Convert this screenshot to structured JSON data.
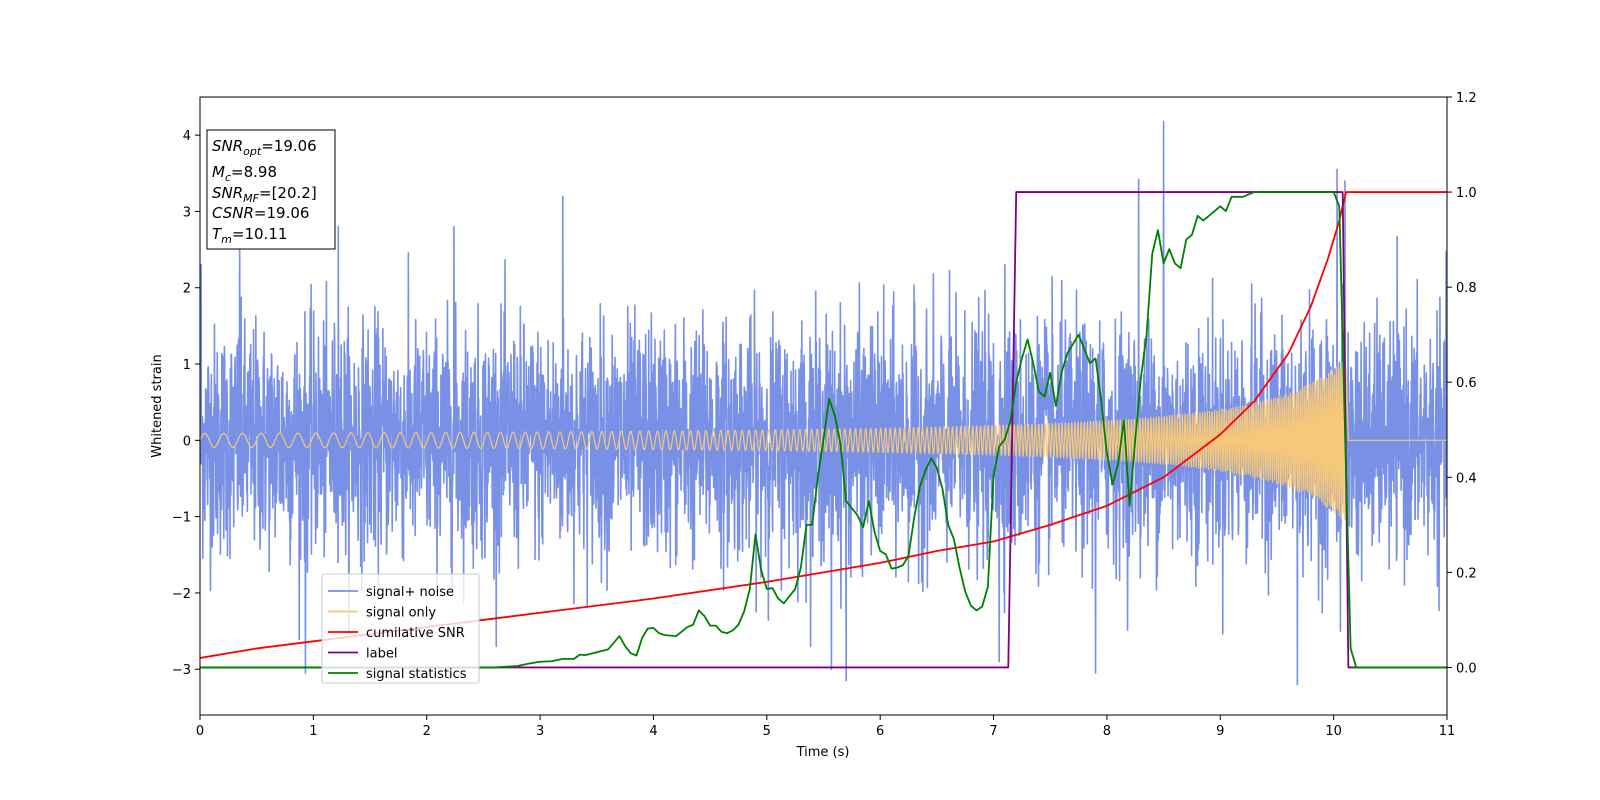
{
  "chart_data": {
    "type": "line",
    "xlabel": "Time (s)",
    "ylabel": "Whitened strain",
    "xlim": [
      0,
      11
    ],
    "ylim_left": [
      -3.6,
      4.5
    ],
    "ylim_right": [
      -0.1,
      1.2
    ],
    "x_ticks": [
      0,
      1,
      2,
      3,
      4,
      5,
      6,
      7,
      8,
      9,
      10,
      11
    ],
    "y_ticks_left": [
      -3,
      -2,
      -1,
      0,
      1,
      2,
      3,
      4
    ],
    "y_ticks_right": [
      0.0,
      0.2,
      0.4,
      0.6,
      0.8,
      1.0,
      1.2
    ],
    "y_tick_labels_left": [
      "−3",
      "−2",
      "−1",
      "0",
      "1",
      "2",
      "3",
      "4"
    ],
    "y_tick_labels_right": [
      "0.0",
      "0.2",
      "0.4",
      "0.6",
      "0.8",
      "1.0",
      "1.2"
    ],
    "legend_position": "bottom-left",
    "grid": false,
    "annotations": [
      {
        "var": "SNR",
        "sub": "opt",
        "value": "=19.06"
      },
      {
        "var": "M",
        "sub": "c",
        "value": "=8.98"
      },
      {
        "var": "SNR",
        "sub": "MF",
        "value": "=[20.2]"
      },
      {
        "var": "CSNR",
        "sub": "",
        "value": "=19.06"
      },
      {
        "var": "T",
        "sub": "m",
        "value": "=10.11"
      }
    ],
    "series": [
      {
        "name": "signal+ noise",
        "axis": "left",
        "color": "#7890e6",
        "kind": "noise",
        "params": {
          "noise_std": 0.75,
          "start": 0,
          "end": 11,
          "samples": 4400
        },
        "extremes": [
          [
            0.01,
            2.3
          ],
          [
            0.35,
            2.7
          ],
          [
            0.93,
            -3.05
          ],
          [
            1.22,
            2.8
          ],
          [
            2.24,
            2.8
          ],
          [
            3.2,
            3.2
          ],
          [
            5.57,
            -3.0
          ],
          [
            5.7,
            -3.15
          ],
          [
            7.1,
            2.3
          ],
          [
            7.05,
            -2.9
          ],
          [
            7.9,
            -3.05
          ],
          [
            8.28,
            3.42
          ],
          [
            8.5,
            4.18
          ],
          [
            9.68,
            -3.2
          ],
          [
            10.03,
            3.55
          ],
          [
            10.1,
            3.4
          ],
          [
            10.06,
            -2.5
          ]
        ]
      },
      {
        "name": "signal only",
        "axis": "left",
        "color": "#f5c87a",
        "kind": "chirp",
        "params": {
          "start": 0,
          "end": 10.11,
          "amp_start": 0.05,
          "amp_end": 1.1,
          "f_start": 6,
          "f_end": 60
        }
      },
      {
        "name": "cumilative SNR",
        "axis": "right",
        "color": "#ff0000",
        "x": [
          0,
          0.5,
          1,
          2,
          3,
          4,
          5,
          6,
          6.5,
          7,
          7.5,
          8,
          8.5,
          9,
          9.3,
          9.6,
          9.8,
          9.95,
          10.05,
          10.11,
          10.12,
          11
        ],
        "y": [
          0.02,
          0.04,
          0.055,
          0.085,
          0.115,
          0.145,
          0.18,
          0.22,
          0.245,
          0.265,
          0.3,
          0.34,
          0.4,
          0.49,
          0.56,
          0.66,
          0.76,
          0.86,
          0.94,
          1.0,
          1.0,
          1.0
        ]
      },
      {
        "name": "label",
        "axis": "right",
        "color": "#800080",
        "x": [
          0,
          7.13,
          7.2,
          10.08,
          10.13,
          11
        ],
        "y": [
          0,
          0,
          1,
          1,
          0,
          0
        ]
      },
      {
        "name": "signal statistics",
        "axis": "right",
        "color": "#008000",
        "x": [
          0,
          2.4,
          2.6,
          2.8,
          2.9,
          3.0,
          3.1,
          3.2,
          3.3,
          3.35,
          3.4,
          3.5,
          3.6,
          3.7,
          3.75,
          3.8,
          3.85,
          3.9,
          3.95,
          4.0,
          4.05,
          4.1,
          4.15,
          4.2,
          4.3,
          4.35,
          4.4,
          4.45,
          4.5,
          4.55,
          4.6,
          4.65,
          4.7,
          4.75,
          4.8,
          4.85,
          4.9,
          4.95,
          5.0,
          5.05,
          5.1,
          5.15,
          5.2,
          5.25,
          5.3,
          5.35,
          5.4,
          5.45,
          5.5,
          5.55,
          5.6,
          5.65,
          5.7,
          5.75,
          5.8,
          5.85,
          5.9,
          5.95,
          6.0,
          6.05,
          6.1,
          6.15,
          6.2,
          6.25,
          6.3,
          6.35,
          6.4,
          6.45,
          6.5,
          6.55,
          6.6,
          6.65,
          6.7,
          6.75,
          6.8,
          6.85,
          6.9,
          6.95,
          7.0,
          7.05,
          7.1,
          7.15,
          7.2,
          7.25,
          7.3,
          7.35,
          7.4,
          7.45,
          7.5,
          7.55,
          7.6,
          7.65,
          7.7,
          7.75,
          7.8,
          7.85,
          7.9,
          7.95,
          8.0,
          8.05,
          8.1,
          8.15,
          8.2,
          8.25,
          8.3,
          8.35,
          8.4,
          8.45,
          8.5,
          8.55,
          8.6,
          8.65,
          8.7,
          8.75,
          8.8,
          8.85,
          8.9,
          8.95,
          9.0,
          9.05,
          9.1,
          9.2,
          9.3,
          9.5,
          9.7,
          9.8,
          9.9,
          10.0,
          10.05,
          10.1,
          10.15,
          10.2,
          10.3,
          11
        ],
        "y": [
          0.0,
          0.0,
          0.0,
          0.003,
          0.008,
          0.012,
          0.013,
          0.018,
          0.018,
          0.027,
          0.026,
          0.032,
          0.038,
          0.066,
          0.045,
          0.03,
          0.025,
          0.062,
          0.082,
          0.083,
          0.072,
          0.068,
          0.067,
          0.066,
          0.085,
          0.09,
          0.12,
          0.108,
          0.088,
          0.088,
          0.075,
          0.072,
          0.078,
          0.09,
          0.118,
          0.165,
          0.28,
          0.205,
          0.165,
          0.167,
          0.145,
          0.135,
          0.15,
          0.165,
          0.21,
          0.3,
          0.3,
          0.4,
          0.48,
          0.565,
          0.53,
          0.47,
          0.35,
          0.335,
          0.32,
          0.295,
          0.35,
          0.285,
          0.245,
          0.238,
          0.208,
          0.21,
          0.215,
          0.235,
          0.315,
          0.38,
          0.415,
          0.44,
          0.42,
          0.375,
          0.3,
          0.27,
          0.21,
          0.16,
          0.13,
          0.12,
          0.128,
          0.17,
          0.405,
          0.465,
          0.48,
          0.52,
          0.6,
          0.65,
          0.69,
          0.64,
          0.58,
          0.57,
          0.62,
          0.55,
          0.62,
          0.66,
          0.68,
          0.7,
          0.67,
          0.64,
          0.65,
          0.56,
          0.45,
          0.385,
          0.43,
          0.52,
          0.34,
          0.48,
          0.61,
          0.7,
          0.87,
          0.92,
          0.85,
          0.88,
          0.85,
          0.84,
          0.9,
          0.91,
          0.95,
          0.94,
          0.95,
          0.96,
          0.97,
          0.96,
          0.99,
          0.99,
          1.0,
          1.0,
          1.0,
          1.0,
          1.0,
          1.0,
          0.97,
          0.5,
          0.04,
          0.0,
          0.0,
          0.0
        ]
      }
    ]
  }
}
